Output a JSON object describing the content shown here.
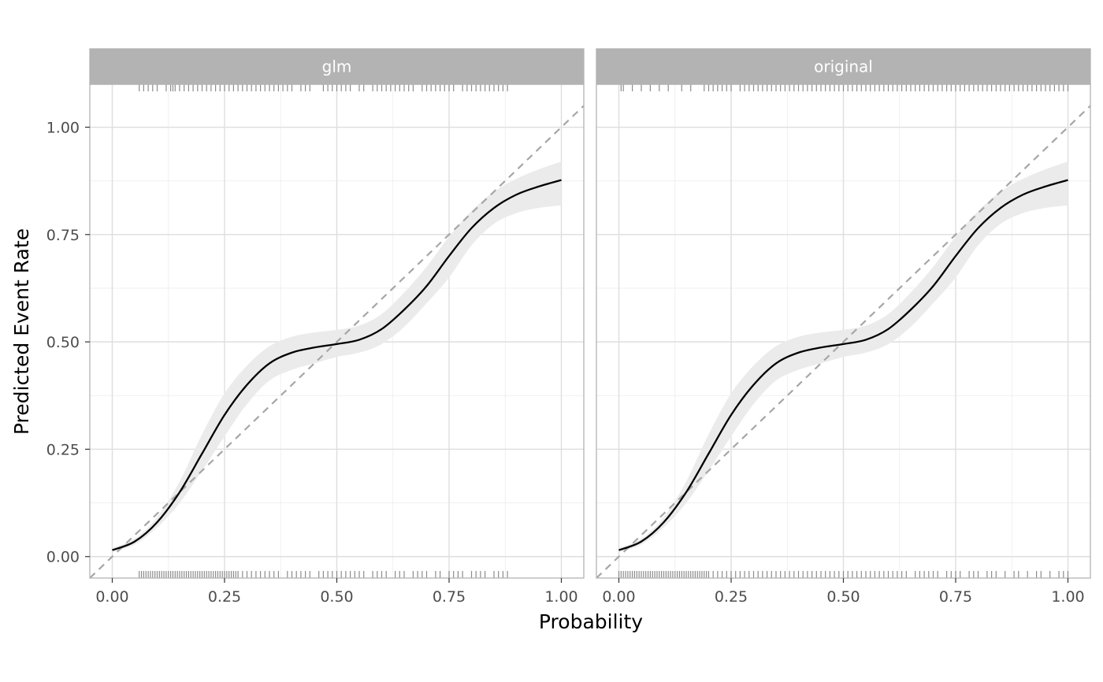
{
  "chart_data": {
    "type": "line",
    "xlabel": "Probability",
    "ylabel": "Predicted Event Rate",
    "xlim": [
      -0.05,
      1.05
    ],
    "ylim": [
      -0.05,
      1.1
    ],
    "x_ticks": [
      "0.00",
      "0.25",
      "0.50",
      "0.75",
      "1.00"
    ],
    "y_ticks": [
      "0.00",
      "0.25",
      "0.50",
      "0.75",
      "1.00"
    ],
    "x_tick_values": [
      0,
      0.25,
      0.5,
      0.75,
      1
    ],
    "y_tick_values": [
      0,
      0.25,
      0.5,
      0.75,
      1
    ],
    "grid": true,
    "reference_line": {
      "style": "dashed",
      "slope": 1,
      "intercept": 0,
      "color": "#a6a6a6"
    },
    "colors": {
      "curve": "#000000",
      "ribbon": "#ebebeb",
      "strip": "#b3b3b3",
      "rug": "#8c8c8c",
      "grid_major": "#dedede",
      "grid_minor": "#eeeeee",
      "panel_border": "#b3b3b3"
    },
    "panels": [
      {
        "strip_label": "glm",
        "x": [
          0.0,
          0.05,
          0.1,
          0.15,
          0.2,
          0.25,
          0.3,
          0.35,
          0.4,
          0.45,
          0.5,
          0.55,
          0.6,
          0.65,
          0.7,
          0.75,
          0.8,
          0.85,
          0.9,
          0.95,
          1.0
        ],
        "y": [
          0.015,
          0.035,
          0.08,
          0.15,
          0.24,
          0.33,
          0.4,
          0.45,
          0.475,
          0.487,
          0.495,
          0.505,
          0.53,
          0.575,
          0.63,
          0.7,
          0.765,
          0.812,
          0.843,
          0.862,
          0.877
        ],
        "ci_lower": [
          0.01,
          0.028,
          0.068,
          0.125,
          0.2,
          0.28,
          0.355,
          0.41,
          0.435,
          0.45,
          0.465,
          0.475,
          0.495,
          0.535,
          0.59,
          0.65,
          0.725,
          0.775,
          0.8,
          0.812,
          0.818
        ],
        "ci_upper": [
          0.02,
          0.042,
          0.092,
          0.175,
          0.285,
          0.38,
          0.445,
          0.49,
          0.512,
          0.522,
          0.528,
          0.538,
          0.565,
          0.615,
          0.675,
          0.745,
          0.805,
          0.85,
          0.88,
          0.902,
          0.92
        ],
        "rug_top": [
          0.06,
          0.07,
          0.08,
          0.09,
          0.1,
          0.12,
          0.13,
          0.135,
          0.14,
          0.15,
          0.16,
          0.17,
          0.18,
          0.19,
          0.2,
          0.21,
          0.22,
          0.23,
          0.24,
          0.25,
          0.26,
          0.27,
          0.28,
          0.29,
          0.3,
          0.31,
          0.32,
          0.33,
          0.34,
          0.35,
          0.36,
          0.37,
          0.38,
          0.39,
          0.4,
          0.42,
          0.43,
          0.44,
          0.47,
          0.48,
          0.49,
          0.5,
          0.51,
          0.52,
          0.53,
          0.55,
          0.56,
          0.58,
          0.59,
          0.6,
          0.61,
          0.62,
          0.63,
          0.64,
          0.65,
          0.66,
          0.67,
          0.69,
          0.7,
          0.71,
          0.72,
          0.73,
          0.74,
          0.75,
          0.76,
          0.78,
          0.79,
          0.8,
          0.81,
          0.82,
          0.83,
          0.84,
          0.85,
          0.86,
          0.87,
          0.88
        ],
        "rug_bottom": [
          0.06,
          0.065,
          0.07,
          0.075,
          0.08,
          0.085,
          0.09,
          0.095,
          0.1,
          0.105,
          0.11,
          0.115,
          0.12,
          0.125,
          0.13,
          0.135,
          0.14,
          0.145,
          0.15,
          0.155,
          0.16,
          0.165,
          0.17,
          0.175,
          0.18,
          0.185,
          0.19,
          0.195,
          0.2,
          0.205,
          0.21,
          0.215,
          0.22,
          0.225,
          0.23,
          0.235,
          0.24,
          0.245,
          0.25,
          0.255,
          0.26,
          0.265,
          0.27,
          0.275,
          0.28,
          0.29,
          0.3,
          0.31,
          0.32,
          0.33,
          0.34,
          0.35,
          0.36,
          0.37,
          0.39,
          0.4,
          0.41,
          0.42,
          0.43,
          0.44,
          0.46,
          0.47,
          0.48,
          0.49,
          0.5,
          0.51,
          0.52,
          0.53,
          0.54,
          0.55,
          0.56,
          0.58,
          0.59,
          0.6,
          0.61,
          0.63,
          0.64,
          0.65,
          0.67,
          0.68,
          0.69,
          0.7,
          0.72,
          0.73,
          0.75,
          0.76,
          0.77,
          0.78,
          0.8,
          0.81,
          0.82,
          0.83,
          0.85,
          0.86,
          0.87,
          0.88
        ]
      },
      {
        "strip_label": "original",
        "x": [
          0.0,
          0.05,
          0.1,
          0.15,
          0.2,
          0.25,
          0.3,
          0.35,
          0.4,
          0.45,
          0.5,
          0.55,
          0.6,
          0.65,
          0.7,
          0.75,
          0.8,
          0.85,
          0.9,
          0.95,
          1.0
        ],
        "y": [
          0.015,
          0.035,
          0.08,
          0.15,
          0.24,
          0.33,
          0.4,
          0.45,
          0.475,
          0.487,
          0.495,
          0.505,
          0.53,
          0.575,
          0.63,
          0.7,
          0.765,
          0.812,
          0.843,
          0.862,
          0.877
        ],
        "ci_lower": [
          0.01,
          0.028,
          0.068,
          0.125,
          0.2,
          0.28,
          0.355,
          0.41,
          0.435,
          0.45,
          0.465,
          0.475,
          0.495,
          0.535,
          0.59,
          0.65,
          0.725,
          0.775,
          0.8,
          0.812,
          0.818
        ],
        "ci_upper": [
          0.02,
          0.042,
          0.092,
          0.175,
          0.285,
          0.38,
          0.445,
          0.49,
          0.512,
          0.522,
          0.528,
          0.538,
          0.565,
          0.615,
          0.675,
          0.745,
          0.805,
          0.85,
          0.88,
          0.902,
          0.92
        ],
        "rug_top": [
          0.005,
          0.01,
          0.03,
          0.05,
          0.07,
          0.09,
          0.11,
          0.14,
          0.16,
          0.19,
          0.2,
          0.21,
          0.22,
          0.23,
          0.24,
          0.25,
          0.27,
          0.28,
          0.29,
          0.3,
          0.31,
          0.32,
          0.33,
          0.34,
          0.35,
          0.36,
          0.37,
          0.38,
          0.39,
          0.4,
          0.41,
          0.42,
          0.43,
          0.44,
          0.45,
          0.46,
          0.47,
          0.48,
          0.49,
          0.5,
          0.51,
          0.52,
          0.53,
          0.54,
          0.55,
          0.56,
          0.57,
          0.58,
          0.59,
          0.6,
          0.61,
          0.62,
          0.63,
          0.64,
          0.65,
          0.66,
          0.67,
          0.68,
          0.69,
          0.7,
          0.71,
          0.72,
          0.73,
          0.74,
          0.75,
          0.76,
          0.77,
          0.78,
          0.79,
          0.8,
          0.81,
          0.82,
          0.83,
          0.84,
          0.85,
          0.86,
          0.87,
          0.88,
          0.89,
          0.9,
          0.91,
          0.92,
          0.93,
          0.94,
          0.95,
          0.96,
          0.97,
          0.98,
          0.99,
          1.0
        ],
        "rug_bottom": [
          0.0,
          0.005,
          0.01,
          0.015,
          0.02,
          0.025,
          0.03,
          0.035,
          0.04,
          0.045,
          0.05,
          0.055,
          0.06,
          0.065,
          0.07,
          0.075,
          0.08,
          0.085,
          0.09,
          0.095,
          0.1,
          0.105,
          0.11,
          0.115,
          0.12,
          0.125,
          0.13,
          0.135,
          0.14,
          0.145,
          0.15,
          0.155,
          0.16,
          0.165,
          0.17,
          0.175,
          0.18,
          0.185,
          0.19,
          0.195,
          0.2,
          0.21,
          0.22,
          0.23,
          0.24,
          0.25,
          0.26,
          0.27,
          0.28,
          0.29,
          0.3,
          0.31,
          0.32,
          0.33,
          0.34,
          0.35,
          0.36,
          0.37,
          0.38,
          0.39,
          0.4,
          0.41,
          0.42,
          0.43,
          0.44,
          0.45,
          0.46,
          0.47,
          0.48,
          0.49,
          0.5,
          0.51,
          0.52,
          0.53,
          0.54,
          0.55,
          0.56,
          0.57,
          0.58,
          0.59,
          0.6,
          0.61,
          0.62,
          0.63,
          0.64,
          0.66,
          0.67,
          0.68,
          0.69,
          0.7,
          0.71,
          0.73,
          0.74,
          0.75,
          0.76,
          0.78,
          0.79,
          0.8,
          0.82,
          0.83,
          0.84,
          0.86,
          0.88,
          0.89,
          0.91,
          0.93,
          0.94,
          0.96,
          0.98,
          0.99,
          1.0
        ]
      }
    ]
  }
}
